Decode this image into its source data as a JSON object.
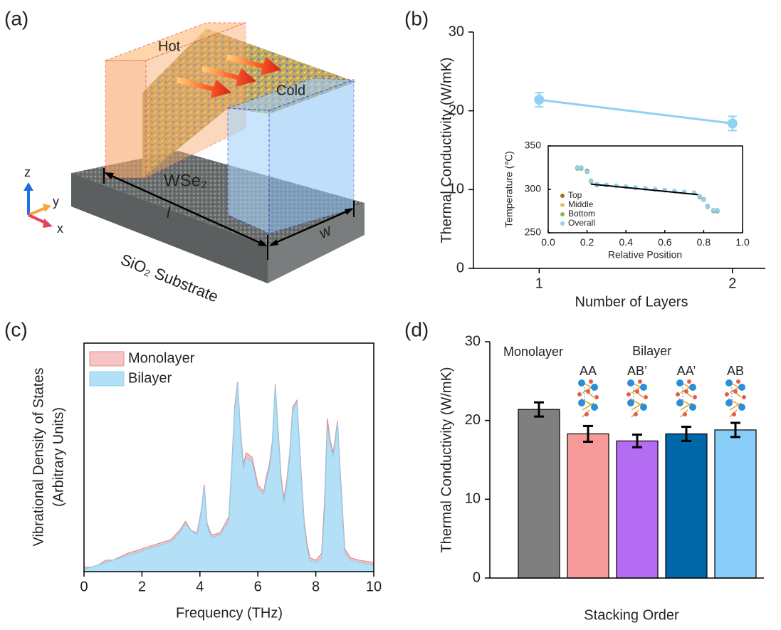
{
  "illustration": {
    "panel": "(a)",
    "hot": "Hot",
    "cold": "Cold",
    "material": "WSe₂",
    "length": "l",
    "width": "w",
    "substrate": "SiO₂ Substrate",
    "axes": [
      "z",
      "y",
      "x"
    ]
  },
  "chart_data": [
    {
      "type": "line",
      "panel": "(b)",
      "xlabel": "Number of Layers",
      "ylabel": "Thermal Conductivity (W/mK)",
      "x": [
        1,
        2
      ],
      "series": [
        {
          "color": "#8fd0f3",
          "values": [
            21.4,
            18.4
          ],
          "errors": [
            0.9,
            0.9
          ]
        }
      ],
      "xlim": [
        0.66,
        2.17
      ],
      "xticks": [
        1,
        2
      ],
      "ylim": [
        0,
        30
      ],
      "yticks": [
        0,
        10,
        20,
        30
      ]
    },
    {
      "type": "scatter",
      "xlabel": "Relative Position",
      "ylabel": "Temperature (℃)",
      "x": [
        0.15,
        0.17,
        0.2,
        0.22,
        0.25,
        0.3,
        0.35,
        0.4,
        0.45,
        0.5,
        0.55,
        0.6,
        0.65,
        0.7,
        0.75,
        0.78,
        0.8,
        0.82,
        0.85,
        0.87
      ],
      "series": [
        {
          "name": "Top",
          "color": "#b5651d",
          "values": [
            325,
            325,
            321,
            310,
            306,
            305,
            304,
            303,
            302,
            301,
            300,
            299,
            298,
            297,
            296,
            292,
            288,
            281,
            276,
            275
          ]
        },
        {
          "name": "Middle",
          "color": "#e8c15b",
          "values": [
            325,
            324,
            320,
            309,
            306,
            305,
            304,
            303,
            302,
            301,
            300,
            299,
            298,
            297,
            296,
            292,
            289,
            281,
            276,
            276
          ]
        },
        {
          "name": "Bottom",
          "color": "#8ab84a",
          "values": [
            324,
            324,
            320,
            309,
            305,
            305,
            304,
            303,
            302,
            301,
            300,
            299,
            298,
            297,
            296,
            291,
            288,
            280,
            275,
            275
          ]
        },
        {
          "name": "Overall",
          "color": "#8fd0f3",
          "values": [
            325,
            325,
            320,
            310,
            306,
            305,
            304,
            303,
            302,
            301,
            300,
            299,
            298,
            297,
            296,
            292,
            288,
            281,
            276,
            276
          ]
        }
      ],
      "fit": {
        "color": "#000000",
        "x": [
          0.22,
          0.77
        ],
        "values": [
          306,
          294
        ]
      },
      "xlim": [
        0,
        1
      ],
      "xticks": [
        {
          "value": 0,
          "label": "0.0"
        },
        {
          "value": 0.2,
          "label": "0.2"
        },
        {
          "value": 0.4,
          "label": "0.4"
        },
        {
          "value": 0.6,
          "label": "0.6"
        },
        {
          "value": 0.8,
          "label": "0.8"
        },
        {
          "value": 1,
          "label": "1.0"
        }
      ],
      "ylim": [
        250,
        350
      ],
      "yticks": [
        250,
        300,
        350
      ]
    },
    {
      "type": "area",
      "panel": "(c)",
      "xlabel": "Frequency (THz)",
      "ylabel": [
        "Vibrational Density of States",
        "(Arbitrary Units)"
      ],
      "x": [
        0,
        0.25,
        0.5,
        0.75,
        1,
        1.5,
        2,
        2.5,
        3,
        3.3,
        3.5,
        3.7,
        3.9,
        4.05,
        4.15,
        4.25,
        4.4,
        4.7,
        5.0,
        5.1,
        5.2,
        5.3,
        5.4,
        5.5,
        5.6,
        5.8,
        6.0,
        6.2,
        6.3,
        6.4,
        6.5,
        6.6,
        6.7,
        6.8,
        6.9,
        7.0,
        7.1,
        7.2,
        7.35,
        7.5,
        7.6,
        7.7,
        7.8,
        8.0,
        8.2,
        8.3,
        8.4,
        8.5,
        8.6,
        8.75,
        8.85,
        9.0,
        9.2,
        9.5,
        10
      ],
      "series": [
        {
          "name": "Monolayer",
          "color": "#f7c4c4",
          "line": "#e58b8b",
          "values": [
            2,
            2,
            3,
            5,
            5,
            8,
            10,
            12,
            14,
            18,
            22,
            18,
            17,
            27,
            38,
            21,
            16,
            17,
            24,
            47,
            72,
            83,
            62,
            47,
            52,
            50,
            38,
            35,
            42,
            47,
            57,
            82,
            62,
            42,
            32,
            40,
            52,
            72,
            75,
            42,
            22,
            12,
            6,
            5,
            8,
            30,
            67,
            57,
            52,
            66,
            42,
            10,
            6,
            5,
            4
          ]
        },
        {
          "name": "Bilayer",
          "color": "#b3e0f6",
          "line": "#8fcfee",
          "values": [
            1,
            2,
            3,
            4,
            5,
            7,
            9,
            11,
            13,
            17,
            21,
            18,
            16,
            26,
            37,
            20,
            15,
            16,
            22,
            45,
            70,
            82,
            60,
            45,
            50,
            48,
            36,
            34,
            40,
            45,
            55,
            81,
            60,
            40,
            30,
            38,
            50,
            70,
            74,
            40,
            20,
            10,
            5,
            4,
            6,
            25,
            63,
            55,
            50,
            65,
            40,
            8,
            5,
            4,
            3
          ]
        }
      ],
      "xlim": [
        0,
        10
      ],
      "xticks": [
        0,
        2,
        4,
        6,
        8,
        10
      ],
      "ylim": [
        0,
        100
      ]
    },
    {
      "type": "bar",
      "panel": "(d)",
      "xlabel": "Stacking Order",
      "ylabel": "Thermal Conductivity (W/mK)",
      "group_label": "Bilayer",
      "categories": [
        "Monolayer",
        "AA",
        "AB’",
        "AA’",
        "AB"
      ],
      "values": [
        21.4,
        18.3,
        17.4,
        18.3,
        18.8
      ],
      "errors": [
        0.9,
        1.0,
        0.8,
        0.9,
        0.9
      ],
      "colors": [
        "#7f7f7f",
        "#f79a9a",
        "#b36cf2",
        "#0067a8",
        "#87cdf7"
      ],
      "ylim": [
        0,
        30
      ],
      "yticks": [
        0,
        10,
        20,
        30
      ]
    }
  ]
}
